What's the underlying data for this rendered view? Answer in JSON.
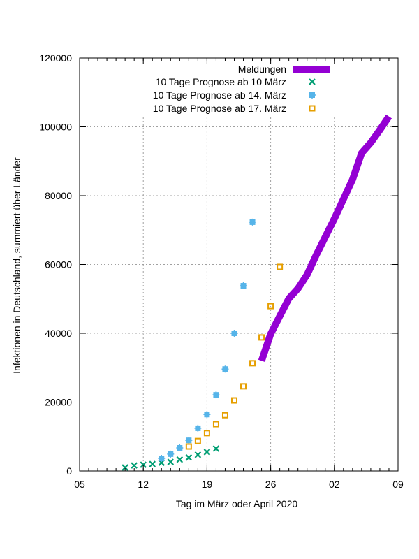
{
  "chart_data": {
    "type": "scatter",
    "title": "",
    "xlabel": "Tag im März oder April 2020",
    "ylabel": "Infektionen in Deutschland, summiert über Länder",
    "xlim": [
      "2020-03-05",
      "2020-04-09"
    ],
    "ylim": [
      0,
      120000
    ],
    "x_ticks": [
      {
        "date": "2020-03-05",
        "label": "05"
      },
      {
        "date": "2020-03-12",
        "label": "12"
      },
      {
        "date": "2020-03-19",
        "label": "19"
      },
      {
        "date": "2020-03-26",
        "label": "26"
      },
      {
        "date": "2020-04-02",
        "label": "02"
      },
      {
        "date": "2020-04-09",
        "label": "09"
      }
    ],
    "y_ticks": [
      0,
      20000,
      40000,
      60000,
      80000,
      100000,
      120000
    ],
    "y_tick_labels": [
      "0",
      "20000",
      "40000",
      "60000",
      "80000",
      "100000",
      "120000"
    ],
    "grid": true,
    "legend_position": "top-right",
    "series": [
      {
        "name": "Meldungen",
        "style": "line",
        "color": "#9400d3",
        "x": [
          "2020-03-25",
          "2020-03-26",
          "2020-03-27",
          "2020-03-28",
          "2020-03-29",
          "2020-03-30",
          "2020-03-31",
          "2020-04-01",
          "2020-04-02",
          "2020-04-03",
          "2020-04-04",
          "2020-04-05",
          "2020-04-06",
          "2020-04-07",
          "2020-04-08"
        ],
        "y": [
          32000,
          39800,
          45000,
          50100,
          53000,
          57000,
          62700,
          68000,
          73300,
          79000,
          84700,
          92400,
          95400,
          99100,
          103000
        ]
      },
      {
        "name": "10 Tage Prognose ab 10 März",
        "style": "cross",
        "color": "#009e73",
        "x": [
          "2020-03-10",
          "2020-03-11",
          "2020-03-12",
          "2020-03-13",
          "2020-03-14",
          "2020-03-15",
          "2020-03-16",
          "2020-03-17",
          "2020-03-18",
          "2020-03-19",
          "2020-03-20"
        ],
        "y": [
          1000,
          1600,
          1800,
          2000,
          2400,
          2600,
          3300,
          3900,
          4700,
          5500,
          6500
        ]
      },
      {
        "name": "10 Tage Prognose ab 14. März",
        "style": "star",
        "color": "#56b4e9",
        "x": [
          "2020-03-14",
          "2020-03-15",
          "2020-03-16",
          "2020-03-17",
          "2020-03-18",
          "2020-03-19",
          "2020-03-20",
          "2020-03-21",
          "2020-03-22",
          "2020-03-23",
          "2020-03-24"
        ],
        "y": [
          3650,
          4900,
          6700,
          8900,
          12400,
          16400,
          22100,
          29600,
          40000,
          53800,
          72300
        ]
      },
      {
        "name": "10 Tage Prognose ab 17. März",
        "style": "square",
        "color": "#e69f00",
        "x": [
          "2020-03-17",
          "2020-03-18",
          "2020-03-19",
          "2020-03-20",
          "2020-03-21",
          "2020-03-22",
          "2020-03-23",
          "2020-03-24",
          "2020-03-25",
          "2020-03-26",
          "2020-03-27"
        ],
        "y": [
          7100,
          8700,
          11000,
          13600,
          16200,
          20500,
          24600,
          31300,
          38800,
          47900,
          59300
        ]
      }
    ]
  }
}
